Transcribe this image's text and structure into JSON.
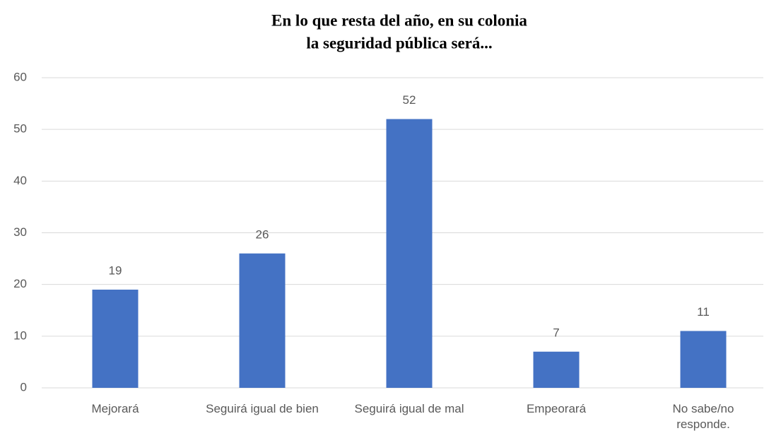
{
  "chart_data": {
    "type": "bar",
    "title": [
      "En lo que resta del año, en su colonia",
      "la seguridad pública será..."
    ],
    "categories": [
      "Mejorará",
      "Seguirá igual de bien",
      "Seguirá igual de mal",
      "Empeorará",
      "No sabe/no responde."
    ],
    "values": [
      19,
      26,
      52,
      7,
      11
    ],
    "color": "#4472c4",
    "ylim": [
      0,
      60
    ],
    "yticks": [
      0,
      10,
      20,
      30,
      40,
      50,
      60
    ],
    "grid": true
  }
}
